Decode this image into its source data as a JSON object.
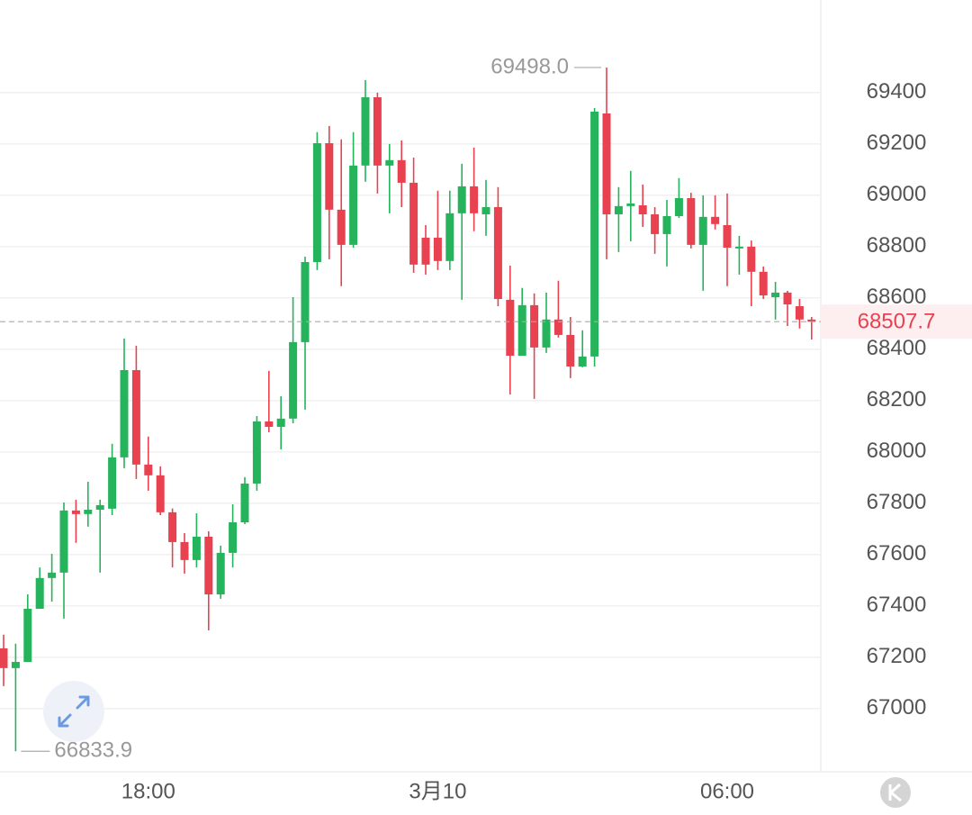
{
  "chart_data": {
    "type": "candlestick",
    "categories": [
      null,
      null,
      null,
      null,
      null,
      null,
      null,
      null,
      null,
      null,
      null,
      null,
      "18:00",
      null,
      null,
      null,
      null,
      null,
      null,
      null,
      null,
      null,
      null,
      null,
      null,
      null,
      null,
      null,
      null,
      null,
      null,
      null,
      null,
      null,
      null,
      null,
      "3月10",
      null,
      null,
      null,
      null,
      null,
      null,
      null,
      null,
      null,
      null,
      null,
      null,
      null,
      null,
      null,
      null,
      null,
      null,
      null,
      null,
      null,
      null,
      null,
      "06:00",
      null,
      null,
      null,
      null,
      null,
      null,
      null
    ],
    "open": [
      67235,
      67158,
      67182,
      67389,
      67509,
      67530,
      67772,
      67758,
      67775,
      67779,
      67979,
      68319,
      67951,
      67909,
      67765,
      67649,
      67579,
      67670,
      67445,
      67607,
      67726,
      67877,
      68119,
      68098,
      68130,
      68428,
      68740,
      69203,
      68944,
      68807,
      69116,
      69382,
      69116,
      69137,
      69049,
      68835,
      68835,
      68744,
      68930,
      69035,
      68926,
      68954,
      68593,
      68375,
      68572,
      68407,
      68516,
      68456,
      68333,
      68372,
      69319,
      68926,
      68958,
      68961,
      68926,
      68849,
      68919,
      68989,
      68807,
      68916,
      68884,
      68793,
      68800,
      68702,
      68603,
      68621,
      68568,
      68516
    ],
    "high": [
      67288,
      67253,
      67445,
      67550,
      67603,
      67803,
      67814,
      67884,
      67814,
      68032,
      68442,
      68414,
      68060,
      67944,
      67780,
      67684,
      67761,
      67691,
      67635,
      67796,
      67902,
      68140,
      68316,
      68217,
      68603,
      68761,
      69246,
      69270,
      69218,
      69246,
      69449,
      69400,
      69200,
      69214,
      69147,
      68884,
      69018,
      69018,
      69123,
      69186,
      69060,
      69032,
      68726,
      68639,
      68618,
      68621,
      68667,
      68526,
      68474,
      69340,
      69498,
      69032,
      69095,
      69042,
      68954,
      68982,
      69067,
      69010,
      69000,
      69000,
      69007,
      68842,
      68824,
      68723,
      68663,
      68628,
      68596,
      68526
    ],
    "low": [
      67088,
      66833.9,
      67182,
      67389,
      67417,
      67351,
      67646,
      67709,
      67530,
      67754,
      67937,
      67895,
      67849,
      67754,
      67550,
      67526,
      67550,
      67305,
      67428,
      67550,
      67719,
      67849,
      68077,
      68010,
      68112,
      68165,
      68709,
      68751,
      68646,
      68796,
      69053,
      69007,
      68930,
      68954,
      68698,
      68691,
      68709,
      68709,
      68593,
      68860,
      68842,
      68568,
      68224,
      68375,
      68207,
      68386,
      68446,
      68288,
      68330,
      68333,
      68751,
      68779,
      68821,
      68877,
      68772,
      68723,
      68912,
      68793,
      68628,
      68867,
      68646,
      68691,
      68568,
      68596,
      68516,
      68491,
      68481,
      68438
    ],
    "close": [
      67158,
      67182,
      67389,
      67509,
      67530,
      67772,
      67758,
      67775,
      67793,
      67979,
      68319,
      67951,
      67909,
      67765,
      67649,
      67579,
      67670,
      67445,
      67607,
      67726,
      67877,
      68119,
      68098,
      68130,
      68428,
      68740,
      69203,
      68944,
      68807,
      69116,
      69382,
      69116,
      69137,
      69049,
      68730,
      68730,
      68744,
      68930,
      69035,
      68930,
      68954,
      68596,
      68375,
      68572,
      68407,
      68516,
      68456,
      68333,
      68372,
      69326,
      68926,
      68958,
      68968,
      68926,
      68849,
      68919,
      68989,
      68807,
      68916,
      68888,
      68796,
      68800,
      68702,
      68610,
      68621,
      68575,
      68516,
      68507.7
    ],
    "up_color": "#25b35b",
    "down_color": "#e8414f",
    "ylim": [
      66754,
      69761
    ],
    "yticks": [
      67000,
      67200,
      67400,
      67600,
      67800,
      68000,
      68200,
      68400,
      68600,
      68800,
      69000,
      69200,
      69400
    ],
    "grid": true,
    "annotations": [
      {
        "value": 69498,
        "label": "69498.0"
      },
      {
        "value": 66833.9,
        "label": "66833.9"
      }
    ]
  }
}
